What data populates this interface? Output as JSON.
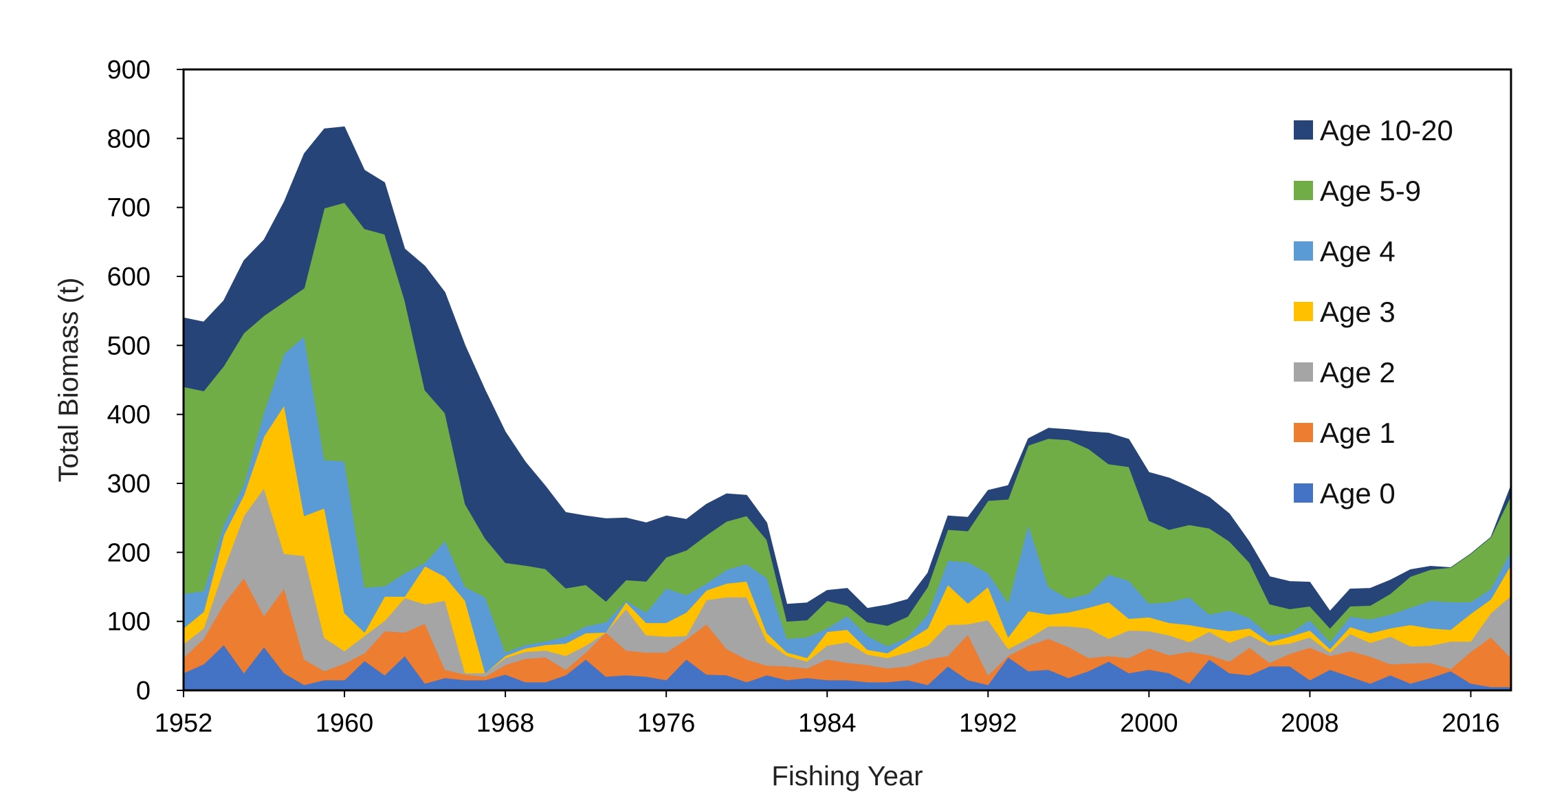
{
  "chart_data": {
    "type": "area",
    "stacked": true,
    "title": "",
    "xlabel": "Fishing Year",
    "ylabel": "Total Biomass (t)",
    "xlim": [
      1952,
      2018
    ],
    "ylim": [
      0,
      900
    ],
    "xticks": [
      1952,
      1960,
      1968,
      1976,
      1984,
      1992,
      2000,
      2008,
      2016
    ],
    "yticks": [
      0,
      100,
      200,
      300,
      400,
      500,
      600,
      700,
      800,
      900
    ],
    "grid": false,
    "legend_position": "right",
    "legend_order": [
      "Age 10-20",
      "Age 5-9",
      "Age 4",
      "Age 3",
      "Age 2",
      "Age 1",
      "Age 0"
    ],
    "x": [
      1952,
      1953,
      1954,
      1955,
      1956,
      1957,
      1958,
      1959,
      1960,
      1961,
      1962,
      1963,
      1964,
      1965,
      1966,
      1967,
      1968,
      1969,
      1970,
      1971,
      1972,
      1973,
      1974,
      1975,
      1976,
      1977,
      1978,
      1979,
      1980,
      1981,
      1982,
      1983,
      1984,
      1985,
      1986,
      1987,
      1988,
      1989,
      1990,
      1991,
      1992,
      1993,
      1994,
      1995,
      1996,
      1997,
      1998,
      1999,
      2000,
      2001,
      2002,
      2003,
      2004,
      2005,
      2006,
      2007,
      2008,
      2009,
      2010,
      2011,
      2012,
      2013,
      2014,
      2015,
      2016,
      2017,
      2018
    ],
    "series": [
      {
        "name": "Age 0",
        "color": "#4472c4",
        "values": [
          25,
          38,
          66,
          25,
          63,
          25,
          8,
          15,
          15,
          43,
          22,
          50,
          10,
          18,
          15,
          15,
          23,
          12,
          12,
          22,
          45,
          20,
          22,
          20,
          15,
          45,
          23,
          22,
          12,
          22,
          15,
          18,
          15,
          15,
          12,
          12,
          15,
          8,
          35,
          15,
          8,
          48,
          28,
          30,
          18,
          28,
          42,
          25,
          30,
          25,
          10,
          45,
          25,
          22,
          35,
          35,
          15,
          30,
          20,
          10,
          22,
          10,
          18,
          28,
          10,
          5,
          5
        ]
      },
      {
        "name": "Age 1",
        "color": "#ed7d31",
        "values": [
          22,
          37,
          59,
          138,
          45,
          123,
          37,
          13,
          24,
          11,
          64,
          34,
          87,
          12,
          8,
          5,
          14,
          34,
          36,
          8,
          10,
          64,
          36,
          35,
          40,
          29,
          73,
          38,
          33,
          14,
          20,
          14,
          30,
          25,
          25,
          20,
          20,
          37,
          15,
          66,
          14,
          2,
          37,
          45,
          45,
          19,
          8,
          22,
          31,
          26,
          46,
          6,
          17,
          40,
          5,
          18,
          47,
          20,
          37,
          39,
          16,
          29,
          22,
          3,
          46,
          72,
          42
        ]
      },
      {
        "name": "Age 2",
        "color": "#a5a5a5",
        "values": [
          20,
          15,
          50,
          90,
          185,
          50,
          150,
          48,
          18,
          25,
          15,
          50,
          28,
          100,
          2,
          5,
          10,
          10,
          10,
          20,
          10,
          0,
          60,
          25,
          23,
          5,
          35,
          75,
          90,
          35,
          15,
          10,
          20,
          30,
          15,
          15,
          20,
          20,
          45,
          15,
          80,
          10,
          10,
          18,
          30,
          43,
          25,
          40,
          25,
          29,
          14,
          34,
          27,
          18,
          25,
          15,
          15,
          5,
          25,
          20,
          40,
          25,
          25,
          40,
          15,
          35,
          90
        ]
      },
      {
        "name": "Age 3",
        "color": "#ffc000",
        "values": [
          23,
          24,
          50,
          30,
          75,
          215,
          58,
          188,
          55,
          5,
          35,
          2,
          55,
          35,
          105,
          0,
          3,
          5,
          8,
          18,
          18,
          0,
          10,
          18,
          20,
          34,
          14,
          20,
          23,
          12,
          5,
          5,
          20,
          18,
          7,
          7,
          17,
          25,
          58,
          30,
          48,
          17,
          40,
          17,
          20,
          30,
          53,
          17,
          20,
          18,
          25,
          5,
          17,
          10,
          5,
          10,
          10,
          5,
          10,
          14,
          12,
          31,
          25,
          17,
          40,
          20,
          45
        ]
      },
      {
        "name": "Age 4",
        "color": "#5b9bd5",
        "values": [
          50,
          30,
          15,
          15,
          35,
          75,
          260,
          70,
          220,
          65,
          15,
          34,
          5,
          52,
          20,
          110,
          5,
          5,
          5,
          10,
          10,
          15,
          2,
          15,
          50,
          25,
          10,
          20,
          25,
          80,
          20,
          30,
          5,
          20,
          20,
          10,
          5,
          20,
          35,
          60,
          20,
          50,
          125,
          40,
          20,
          20,
          40,
          55,
          20,
          30,
          40,
          20,
          30,
          15,
          10,
          5,
          15,
          10,
          15,
          20,
          20,
          25,
          40,
          40,
          17,
          15,
          20
        ]
      },
      {
        "name": "Age 5-9",
        "color": "#70ad47",
        "values": [
          300,
          290,
          230,
          220,
          140,
          75,
          70,
          365,
          375,
          520,
          510,
          395,
          250,
          185,
          120,
          85,
          130,
          115,
          105,
          70,
          60,
          30,
          30,
          45,
          45,
          65,
          70,
          70,
          70,
          55,
          25,
          25,
          40,
          15,
          20,
          30,
          30,
          40,
          45,
          45,
          105,
          150,
          115,
          215,
          230,
          210,
          160,
          165,
          120,
          105,
          105,
          125,
          100,
          80,
          45,
          35,
          20,
          20,
          15,
          20,
          30,
          45,
          45,
          50,
          70,
          75,
          80
        ]
      },
      {
        "name": "Age 10-20",
        "color": "#264478",
        "values": [
          100,
          100,
          95,
          105,
          110,
          145,
          195,
          115,
          110,
          85,
          75,
          75,
          180,
          175,
          230,
          215,
          190,
          150,
          120,
          110,
          100,
          120,
          90,
          85,
          60,
          45,
          45,
          40,
          30,
          25,
          25,
          25,
          15,
          25,
          20,
          30,
          25,
          20,
          20,
          20,
          15,
          20,
          10,
          15,
          15,
          25,
          45,
          40,
          70,
          75,
          55,
          45,
          40,
          30,
          40,
          40,
          35,
          25,
          25,
          25,
          20,
          10,
          5,
          0,
          0,
          0,
          15
        ]
      }
    ]
  }
}
